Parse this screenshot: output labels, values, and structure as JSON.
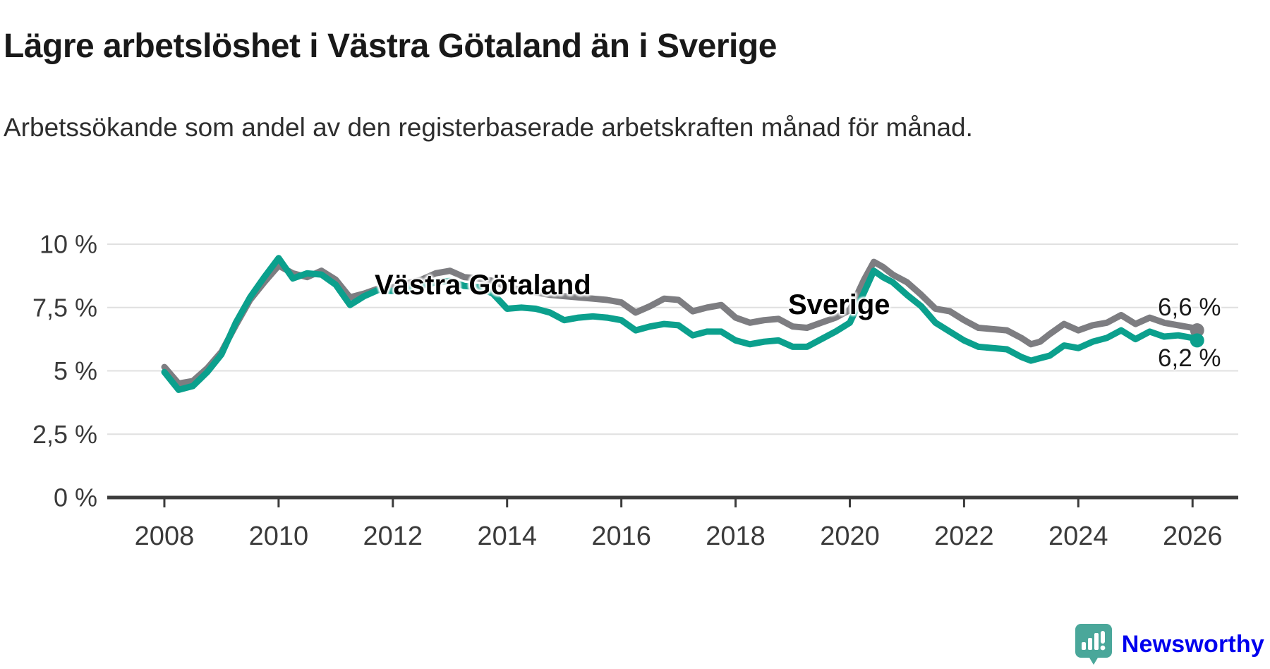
{
  "header": {
    "title": "Lägre arbetslöshet i Västra Götaland än i Sverige",
    "subtitle": "Arbetssökande som andel av den registerbaserade arbetskraften månad för månad."
  },
  "chart_data": {
    "type": "line",
    "title": "Lägre arbetslöshet i Västra Götaland än i Sverige",
    "xlabel": "",
    "ylabel": "Arbetssökande som andel av den registerbaserade arbetskraften",
    "x_axis": {
      "range": [
        2007.0,
        2026.8
      ],
      "ticks": [
        2008,
        2010,
        2012,
        2014,
        2016,
        2018,
        2020,
        2022,
        2024,
        2026
      ],
      "tick_labels": [
        "2008",
        "2010",
        "2012",
        "2014",
        "2016",
        "2018",
        "2020",
        "2022",
        "2024",
        "2026"
      ]
    },
    "y_axis": {
      "range": [
        0,
        10
      ],
      "ticks": [
        0,
        2.5,
        5,
        7.5,
        10
      ],
      "tick_labels": [
        "0 %",
        "2,5 %",
        "5 %",
        "7,5 %",
        "10 %"
      ],
      "grid": true
    },
    "legend_position": "inline-labels-on-lines",
    "series": [
      {
        "name": "Sverige",
        "color": "#7d7d81",
        "end_label": "6,6 %",
        "end_value": 6.6,
        "points": [
          [
            2008.0,
            5.15
          ],
          [
            2008.25,
            4.5
          ],
          [
            2008.5,
            4.6
          ],
          [
            2008.75,
            5.1
          ],
          [
            2009.0,
            5.75
          ],
          [
            2009.25,
            6.8
          ],
          [
            2009.5,
            7.8
          ],
          [
            2009.75,
            8.5
          ],
          [
            2010.0,
            9.15
          ],
          [
            2010.25,
            8.85
          ],
          [
            2010.5,
            8.7
          ],
          [
            2010.75,
            8.95
          ],
          [
            2011.0,
            8.6
          ],
          [
            2011.25,
            7.9
          ],
          [
            2011.5,
            8.05
          ],
          [
            2011.75,
            8.25
          ],
          [
            2012.0,
            8.3
          ],
          [
            2012.25,
            8.45
          ],
          [
            2012.5,
            8.6
          ],
          [
            2012.75,
            8.85
          ],
          [
            2013.0,
            8.95
          ],
          [
            2013.25,
            8.7
          ],
          [
            2013.5,
            8.65
          ],
          [
            2013.75,
            8.55
          ],
          [
            2014.0,
            8.3
          ],
          [
            2014.25,
            8.2
          ],
          [
            2014.5,
            8.1
          ],
          [
            2014.75,
            8.0
          ],
          [
            2015.0,
            7.95
          ],
          [
            2015.25,
            7.9
          ],
          [
            2015.5,
            7.85
          ],
          [
            2015.75,
            7.8
          ],
          [
            2016.0,
            7.7
          ],
          [
            2016.25,
            7.3
          ],
          [
            2016.5,
            7.55
          ],
          [
            2016.75,
            7.85
          ],
          [
            2017.0,
            7.8
          ],
          [
            2017.25,
            7.35
          ],
          [
            2017.5,
            7.5
          ],
          [
            2017.75,
            7.6
          ],
          [
            2018.0,
            7.1
          ],
          [
            2018.25,
            6.9
          ],
          [
            2018.5,
            7.0
          ],
          [
            2018.75,
            7.05
          ],
          [
            2019.0,
            6.75
          ],
          [
            2019.25,
            6.7
          ],
          [
            2019.5,
            6.9
          ],
          [
            2019.75,
            7.1
          ],
          [
            2020.0,
            7.4
          ],
          [
            2020.25,
            8.6
          ],
          [
            2020.42,
            9.3
          ],
          [
            2020.58,
            9.1
          ],
          [
            2020.75,
            8.8
          ],
          [
            2021.0,
            8.5
          ],
          [
            2021.25,
            8.0
          ],
          [
            2021.5,
            7.45
          ],
          [
            2021.75,
            7.35
          ],
          [
            2022.0,
            7.0
          ],
          [
            2022.25,
            6.7
          ],
          [
            2022.5,
            6.65
          ],
          [
            2022.75,
            6.6
          ],
          [
            2023.0,
            6.3
          ],
          [
            2023.17,
            6.05
          ],
          [
            2023.33,
            6.15
          ],
          [
            2023.5,
            6.45
          ],
          [
            2023.75,
            6.85
          ],
          [
            2024.0,
            6.6
          ],
          [
            2024.25,
            6.8
          ],
          [
            2024.5,
            6.9
          ],
          [
            2024.75,
            7.2
          ],
          [
            2025.0,
            6.85
          ],
          [
            2025.25,
            7.1
          ],
          [
            2025.5,
            6.9
          ],
          [
            2025.75,
            6.8
          ],
          [
            2026.0,
            6.7
          ],
          [
            2026.08,
            6.6
          ]
        ]
      },
      {
        "name": "Västra Götaland",
        "color": "#0ba08d",
        "end_label": "6,2 %",
        "end_value": 6.2,
        "points": [
          [
            2008.0,
            4.95
          ],
          [
            2008.25,
            4.25
          ],
          [
            2008.5,
            4.4
          ],
          [
            2008.75,
            4.95
          ],
          [
            2009.0,
            5.65
          ],
          [
            2009.25,
            6.9
          ],
          [
            2009.5,
            7.9
          ],
          [
            2009.75,
            8.7
          ],
          [
            2010.0,
            9.45
          ],
          [
            2010.25,
            8.65
          ],
          [
            2010.5,
            8.85
          ],
          [
            2010.75,
            8.8
          ],
          [
            2011.0,
            8.4
          ],
          [
            2011.25,
            7.6
          ],
          [
            2011.5,
            7.95
          ],
          [
            2011.75,
            8.2
          ],
          [
            2012.0,
            8.15
          ],
          [
            2012.25,
            8.25
          ],
          [
            2012.5,
            8.35
          ],
          [
            2012.75,
            8.5
          ],
          [
            2013.0,
            8.55
          ],
          [
            2013.25,
            8.35
          ],
          [
            2013.5,
            8.3
          ],
          [
            2013.75,
            8.05
          ],
          [
            2014.0,
            7.45
          ],
          [
            2014.25,
            7.5
          ],
          [
            2014.5,
            7.45
          ],
          [
            2014.75,
            7.3
          ],
          [
            2015.0,
            7.0
          ],
          [
            2015.25,
            7.1
          ],
          [
            2015.5,
            7.15
          ],
          [
            2015.75,
            7.1
          ],
          [
            2016.0,
            7.0
          ],
          [
            2016.25,
            6.6
          ],
          [
            2016.5,
            6.75
          ],
          [
            2016.75,
            6.85
          ],
          [
            2017.0,
            6.8
          ],
          [
            2017.25,
            6.4
          ],
          [
            2017.5,
            6.55
          ],
          [
            2017.75,
            6.55
          ],
          [
            2018.0,
            6.2
          ],
          [
            2018.25,
            6.05
          ],
          [
            2018.5,
            6.15
          ],
          [
            2018.75,
            6.2
          ],
          [
            2019.0,
            5.95
          ],
          [
            2019.25,
            5.95
          ],
          [
            2019.5,
            6.25
          ],
          [
            2019.75,
            6.55
          ],
          [
            2020.0,
            6.9
          ],
          [
            2020.25,
            8.1
          ],
          [
            2020.42,
            8.95
          ],
          [
            2020.58,
            8.7
          ],
          [
            2020.75,
            8.5
          ],
          [
            2021.0,
            8.0
          ],
          [
            2021.25,
            7.55
          ],
          [
            2021.5,
            6.9
          ],
          [
            2021.75,
            6.55
          ],
          [
            2022.0,
            6.2
          ],
          [
            2022.25,
            5.95
          ],
          [
            2022.5,
            5.9
          ],
          [
            2022.75,
            5.85
          ],
          [
            2023.0,
            5.55
          ],
          [
            2023.17,
            5.4
          ],
          [
            2023.33,
            5.5
          ],
          [
            2023.5,
            5.6
          ],
          [
            2023.75,
            6.0
          ],
          [
            2024.0,
            5.9
          ],
          [
            2024.25,
            6.15
          ],
          [
            2024.5,
            6.3
          ],
          [
            2024.75,
            6.6
          ],
          [
            2025.0,
            6.25
          ],
          [
            2025.25,
            6.55
          ],
          [
            2025.5,
            6.35
          ],
          [
            2025.75,
            6.4
          ],
          [
            2026.0,
            6.3
          ],
          [
            2026.08,
            6.2
          ]
        ]
      }
    ]
  },
  "annotations": {
    "label_vastra_gotaland": "Västra Götaland",
    "label_sverige": "Sverige",
    "end_value_sverige": "6,6 %",
    "end_value_vastra_gotaland": "6,2 %"
  },
  "footer": {
    "brand": "Newsworthy",
    "brand_color": "#4aa79a",
    "logo_icon": "speech-bubble-with-bar-chart-and-exclamation"
  },
  "colors": {
    "background": "#ffffff",
    "title_text": "#191919",
    "subtitle_text": "#2e2e2e",
    "grid": "#e0e0e0",
    "axis": "#3c3c3c",
    "tick_text": "#3a3a3a",
    "sverige_line": "#7d7d81",
    "vastra_gotaland_line": "#0ba08d"
  }
}
